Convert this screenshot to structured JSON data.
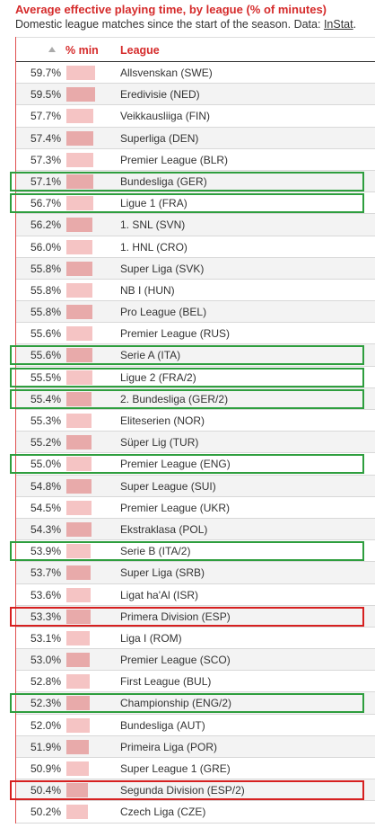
{
  "title": "Average effective playing time, by league (% of minutes)",
  "subtitle_text": "Domestic league matches since the start of the season. Data: ",
  "source_link": "InStat",
  "subtitle_end": ".",
  "columns": {
    "pct": "% min",
    "league": "League"
  },
  "colors": {
    "title": "#d52b2b",
    "bar_light": "#f5c4c4",
    "bar_dark": "#e8aaaa",
    "green_box": "#2e9e3e",
    "red_box": "#d62020"
  },
  "chart_data": {
    "type": "table",
    "title": "Average effective playing time, by league (% of minutes)",
    "columns": [
      "% min",
      "League"
    ],
    "value_labels": [
      "59.7%",
      "59.5%",
      "57.7%",
      "57.4%",
      "57.3%",
      "57.1%",
      "56.7%",
      "56.2%",
      "56.0%",
      "55.8%",
      "55.8%",
      "55.8%",
      "55.6%",
      "55.6%",
      "55.5%",
      "55.4%",
      "55.3%",
      "55.2%",
      "55.0%",
      "54.8%",
      "54.5%",
      "54.3%",
      "53.9%",
      "53.7%",
      "53.6%",
      "53.3%",
      "53.1%",
      "53.0%",
      "52.8%",
      "52.3%",
      "52.0%",
      "51.9%",
      "50.9%",
      "50.4%",
      "50.2%"
    ],
    "values": [
      59.7,
      59.5,
      57.7,
      57.4,
      57.3,
      57.1,
      56.7,
      56.2,
      56.0,
      55.8,
      55.8,
      55.8,
      55.6,
      55.6,
      55.5,
      55.4,
      55.3,
      55.2,
      55.0,
      54.8,
      54.5,
      54.3,
      53.9,
      53.7,
      53.6,
      53.3,
      53.1,
      53.0,
      52.8,
      52.3,
      52.0,
      51.9,
      50.9,
      50.4,
      50.2
    ],
    "leagues": [
      "Allsvenskan (SWE)",
      "Eredivisie (NED)",
      "Veikkausliiga (FIN)",
      "Superliga (DEN)",
      "Premier League (BLR)",
      "Bundesliga (GER)",
      "Ligue 1 (FRA)",
      "1. SNL (SVN)",
      "1. HNL (CRO)",
      "Super Liga (SVK)",
      "NB I (HUN)",
      "Pro League (BEL)",
      "Premier League (RUS)",
      "Serie A (ITA)",
      "Ligue 2 (FRA/2)",
      "2. Bundesliga (GER/2)",
      "Eliteserien (NOR)",
      "Süper Lig (TUR)",
      "Premier League (ENG)",
      "Super League (SUI)",
      "Premier League (UKR)",
      "Ekstraklasa (POL)",
      "Serie B (ITA/2)",
      "Super Liga (SRB)",
      "Ligat ha'Al (ISR)",
      "Primera Division (ESP)",
      "Liga I (ROM)",
      "Premier League (SCO)",
      "First League (BUL)",
      "Championship (ENG/2)",
      "Bundesliga (AUT)",
      "Primeira Liga (POR)",
      "Super League 1 (GRE)",
      "Segunda Division (ESP/2)",
      "Czech Liga (CZE)"
    ],
    "highlight": [
      "",
      "",
      "",
      "",
      "",
      "green",
      "green",
      "",
      "",
      "",
      "",
      "",
      "",
      "green",
      "green",
      "green",
      "",
      "",
      "green",
      "",
      "",
      "",
      "green",
      "",
      "",
      "red",
      "",
      "",
      "",
      "green",
      "",
      "",
      "",
      "red",
      ""
    ],
    "bar_scale_max": 59.7
  }
}
